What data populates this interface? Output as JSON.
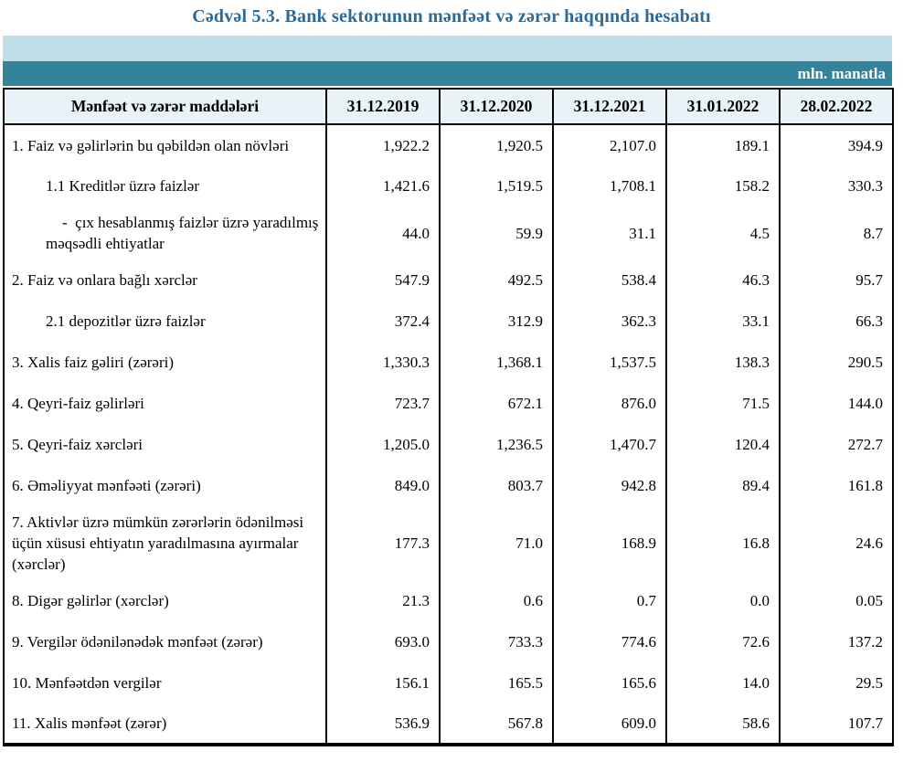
{
  "title": "Cədvəl 5.3. Bank sektorunun mənfəət və zərər haqqında hesabatı",
  "unit_label": "mln. manatla",
  "colors": {
    "title_text": "#2a6b9d",
    "band_light_blue": "#bfdde7",
    "band_teal": "#33839b",
    "header_row_bg": "#e9f3f7",
    "border": "#000000"
  },
  "table": {
    "header": [
      "Mənfəət və zərər maddələri",
      "31.12.2019",
      "31.12.2020",
      "31.12.2021",
      "31.01.2022",
      "28.02.2022"
    ],
    "rows": [
      {
        "label": "1. Faiz və gəlirlərin bu qəbildən olan növləri",
        "indent": "none",
        "values": [
          "1,922.2",
          "1,920.5",
          "2,107.0",
          "189.1",
          "394.9"
        ]
      },
      {
        "label": "1.1 Kreditlər üzrə faizlər",
        "indent": "sub",
        "values": [
          "1,421.6",
          "1,519.5",
          "1,708.1",
          "158.2",
          "330.3"
        ]
      },
      {
        "label": "-  çıx hesablanmış faizlər üzrə yaradılmış məqsədli ehtiyatlar",
        "indent": "dash",
        "values": [
          "44.0",
          "59.9",
          "31.1",
          "4.5",
          "8.7"
        ]
      },
      {
        "label": "2. Faiz və onlara bağlı xərclər",
        "indent": "none",
        "values": [
          "547.9",
          "492.5",
          "538.4",
          "46.3",
          "95.7"
        ]
      },
      {
        "label": "2.1 depozitlər üzrə faizlər",
        "indent": "sub",
        "values": [
          "372.4",
          "312.9",
          "362.3",
          "33.1",
          "66.3"
        ]
      },
      {
        "label": "3. Xalis faiz gəliri (zərəri)",
        "indent": "none",
        "values": [
          "1,330.3",
          "1,368.1",
          "1,537.5",
          "138.3",
          "290.5"
        ]
      },
      {
        "label": "4. Qeyri-faiz gəlirləri",
        "indent": "none",
        "values": [
          "723.7",
          "672.1",
          "876.0",
          "71.5",
          "144.0"
        ]
      },
      {
        "label": "5. Qeyri-faiz xərcləri",
        "indent": "none",
        "values": [
          "1,205.0",
          "1,236.5",
          "1,470.7",
          "120.4",
          "272.7"
        ]
      },
      {
        "label": "6. Əməliyyat mənfəəti (zərəri)",
        "indent": "none",
        "values": [
          "849.0",
          "803.7",
          "942.8",
          "89.4",
          "161.8"
        ]
      },
      {
        "label": "7. Aktivlər üzrə mümkün zərərlərin ödənilməsi üçün xüsusi ehtiyatın yaradılmasına ayırmalar (xərclər)",
        "indent": "none",
        "values": [
          "177.3",
          "71.0",
          "168.9",
          "16.8",
          "24.6"
        ]
      },
      {
        "label": "8. Digər gəlirlər (xərclər)",
        "indent": "none",
        "values": [
          "21.3",
          "0.6",
          "0.7",
          "0.0",
          "0.05"
        ]
      },
      {
        "label": "9. Vergilər ödənilənədək mənfəət (zərər)",
        "indent": "none",
        "values": [
          "693.0",
          "733.3",
          "774.6",
          "72.6",
          "137.2"
        ]
      },
      {
        "label": "10. Mənfəətdən vergilər",
        "indent": "none",
        "values": [
          "156.1",
          "165.5",
          "165.6",
          "14.0",
          "29.5"
        ]
      },
      {
        "label": "11. Xalis mənfəət (zərər)",
        "indent": "none",
        "values": [
          "536.9",
          "567.8",
          "609.0",
          "58.6",
          "107.7"
        ]
      }
    ]
  }
}
